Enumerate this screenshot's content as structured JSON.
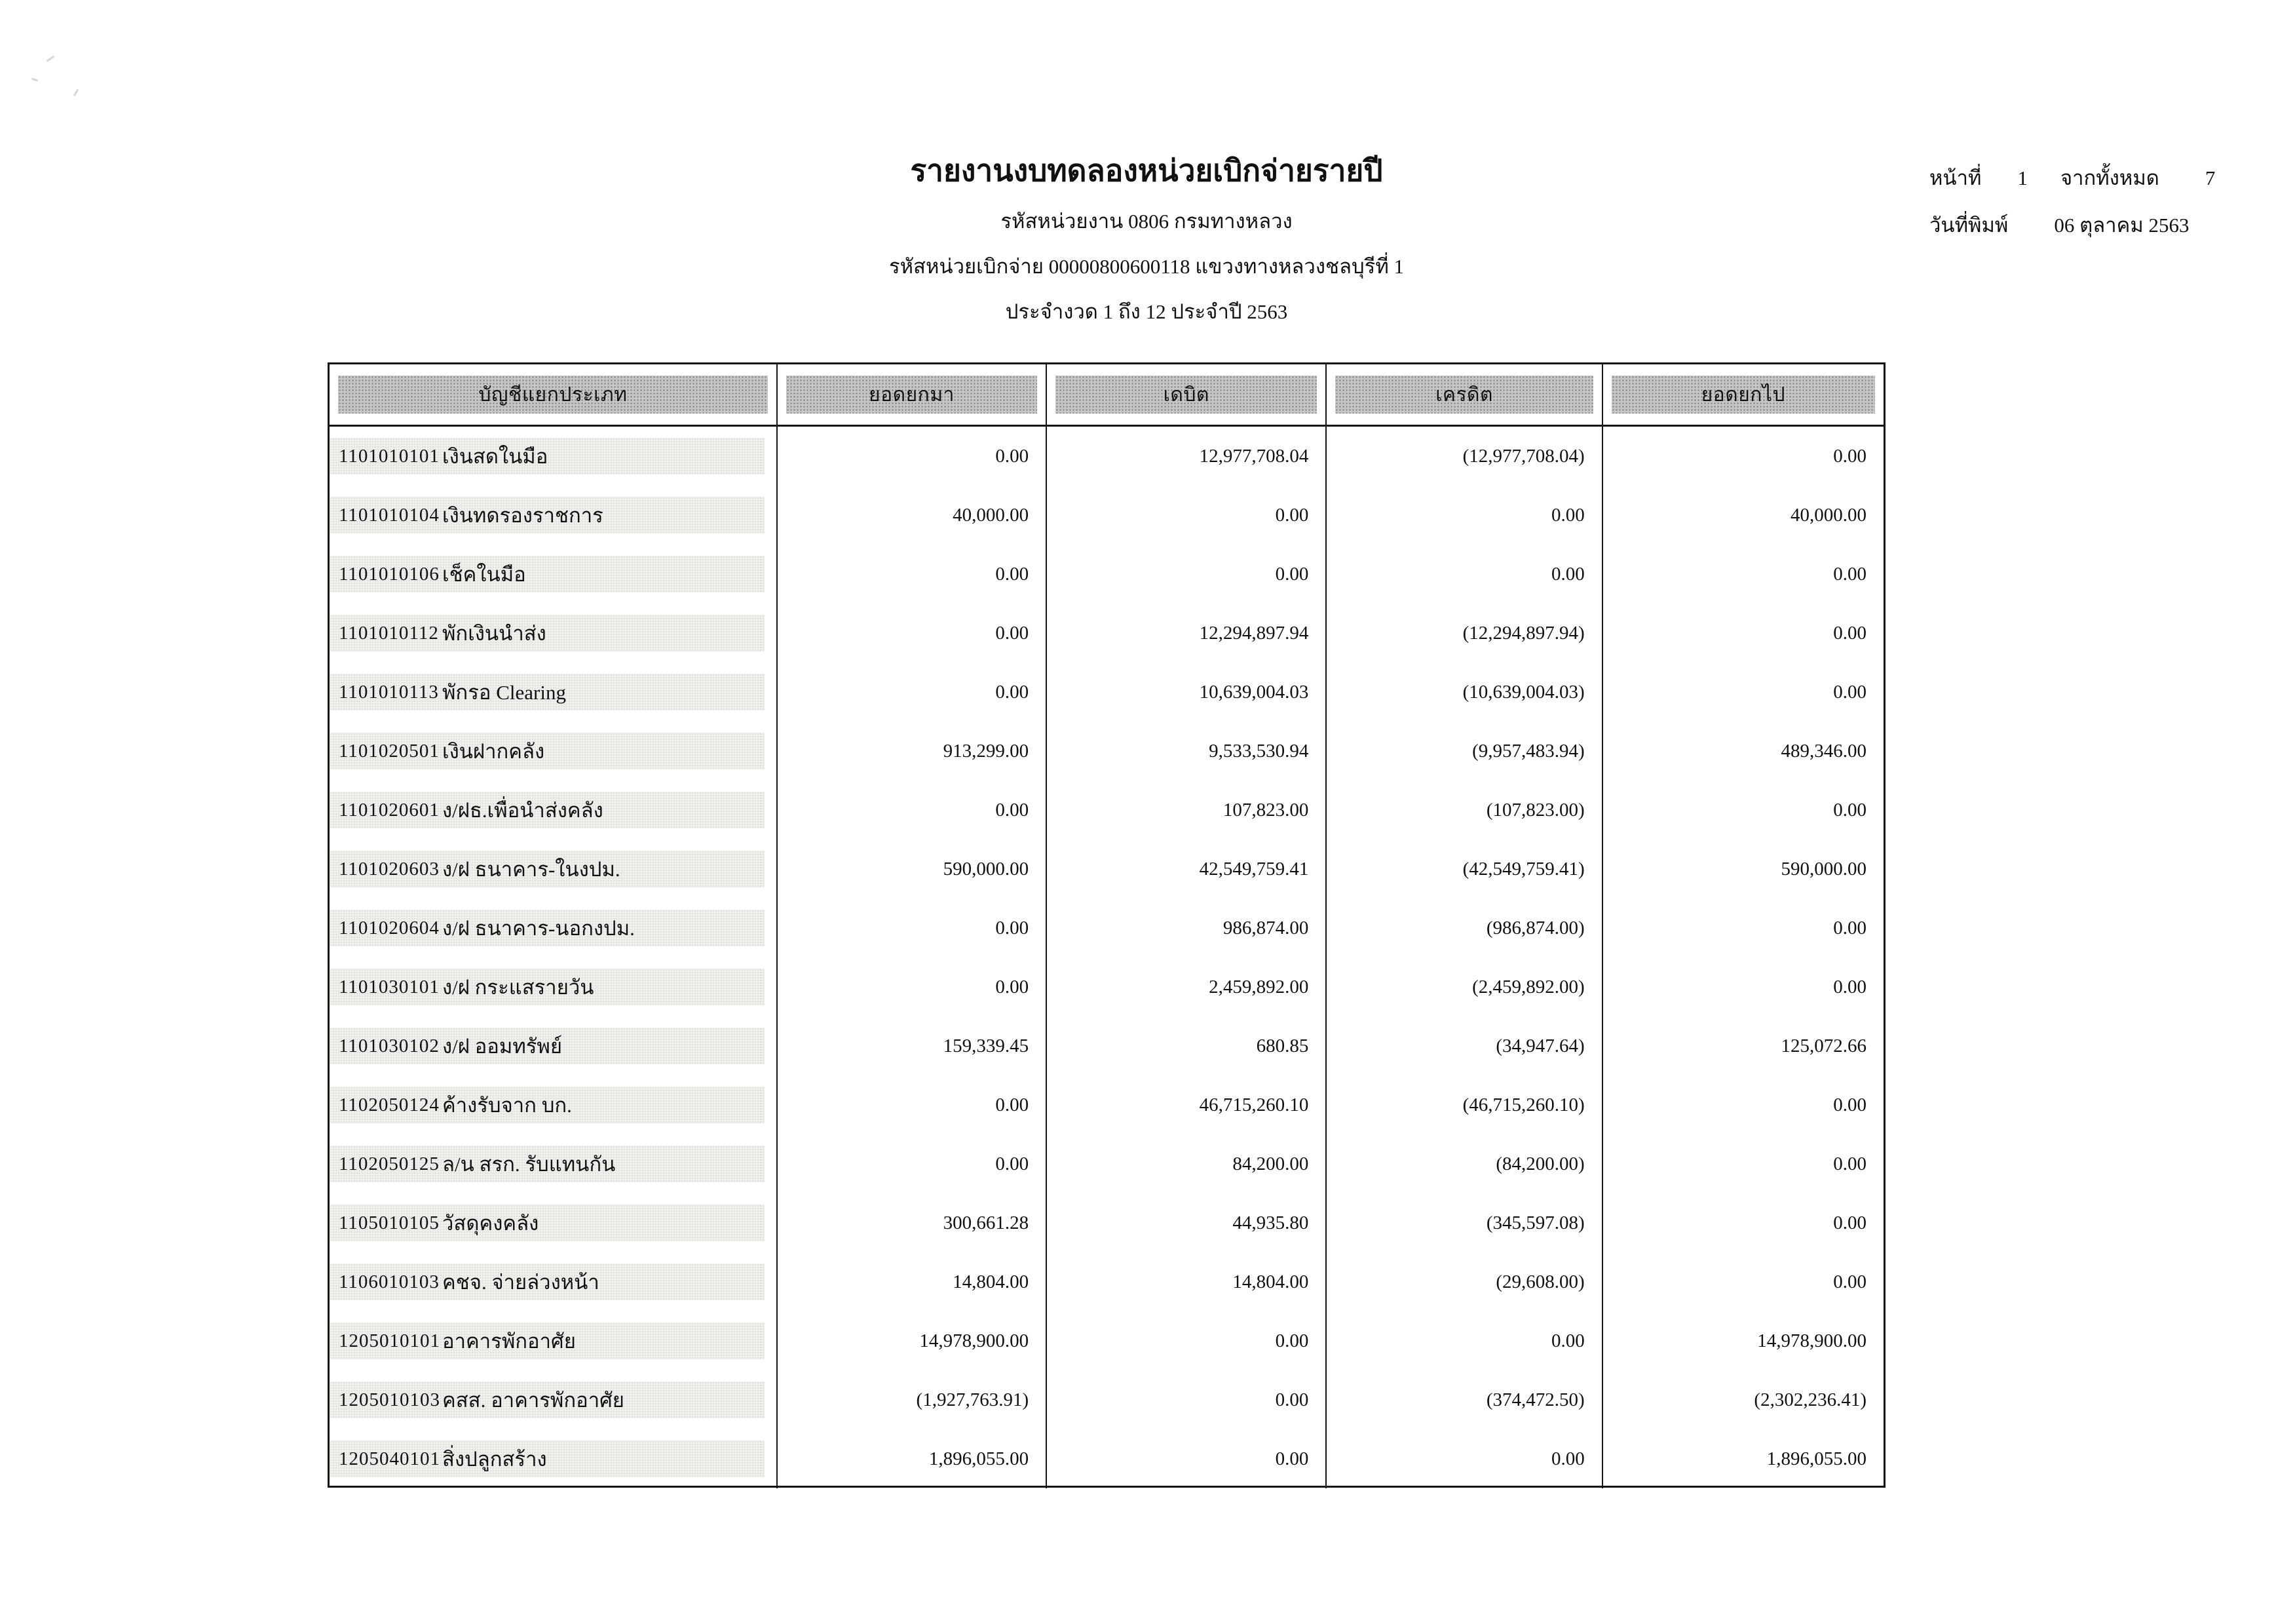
{
  "report": {
    "title": "รายงานงบทดลองหน่วยเบิกจ่ายรายปี",
    "org_line": "รหัสหน่วยงาน 0806 กรมทางหลวง",
    "unit_line": "รหัสหน่วยเบิกจ่าย 00000800600118 แขวงทางหลวงชลบุรีที่ 1",
    "period_line": "ประจำงวด 1 ถึง 12 ประจำปี 2563",
    "page_info": {
      "page_label": "หน้าที่",
      "page_number": "1",
      "of_label": "จากทั้งหมด",
      "total_pages": "7",
      "print_date_label": "วันที่พิมพ์",
      "print_date": "06 ตุลาคม 2563"
    }
  },
  "table": {
    "headers": {
      "account": "บัญชีแยกประเภท",
      "brought_forward": "ยอดยกมา",
      "debit": "เดบิต",
      "credit": "เครดิต",
      "carried_forward": "ยอดยกไป"
    },
    "rows": [
      {
        "code": "1101010101",
        "name": "เงินสดในมือ",
        "brought_forward": "0.00",
        "debit": "12,977,708.04",
        "credit": "(12,977,708.04)",
        "carried_forward": "0.00"
      },
      {
        "code": "1101010104",
        "name": "เงินทดรองราชการ",
        "brought_forward": "40,000.00",
        "debit": "0.00",
        "credit": "0.00",
        "carried_forward": "40,000.00"
      },
      {
        "code": "1101010106",
        "name": "เช็คในมือ",
        "brought_forward": "0.00",
        "debit": "0.00",
        "credit": "0.00",
        "carried_forward": "0.00"
      },
      {
        "code": "1101010112",
        "name": "พักเงินนำส่ง",
        "brought_forward": "0.00",
        "debit": "12,294,897.94",
        "credit": "(12,294,897.94)",
        "carried_forward": "0.00"
      },
      {
        "code": "1101010113",
        "name": "พักรอ Clearing",
        "brought_forward": "0.00",
        "debit": "10,639,004.03",
        "credit": "(10,639,004.03)",
        "carried_forward": "0.00"
      },
      {
        "code": "1101020501",
        "name": "เงินฝากคลัง",
        "brought_forward": "913,299.00",
        "debit": "9,533,530.94",
        "credit": "(9,957,483.94)",
        "carried_forward": "489,346.00"
      },
      {
        "code": "1101020601",
        "name": "ง/ฝธ.เพื่อนำส่งคลัง",
        "brought_forward": "0.00",
        "debit": "107,823.00",
        "credit": "(107,823.00)",
        "carried_forward": "0.00"
      },
      {
        "code": "1101020603",
        "name": "ง/ฝ ธนาคาร-ในงปม.",
        "brought_forward": "590,000.00",
        "debit": "42,549,759.41",
        "credit": "(42,549,759.41)",
        "carried_forward": "590,000.00"
      },
      {
        "code": "1101020604",
        "name": "ง/ฝ ธนาคาร-นอกงปม.",
        "brought_forward": "0.00",
        "debit": "986,874.00",
        "credit": "(986,874.00)",
        "carried_forward": "0.00"
      },
      {
        "code": "1101030101",
        "name": "ง/ฝ กระแสรายวัน",
        "brought_forward": "0.00",
        "debit": "2,459,892.00",
        "credit": "(2,459,892.00)",
        "carried_forward": "0.00"
      },
      {
        "code": "1101030102",
        "name": "ง/ฝ ออมทรัพย์",
        "brought_forward": "159,339.45",
        "debit": "680.85",
        "credit": "(34,947.64)",
        "carried_forward": "125,072.66"
      },
      {
        "code": "1102050124",
        "name": "ค้างรับจาก บก.",
        "brought_forward": "0.00",
        "debit": "46,715,260.10",
        "credit": "(46,715,260.10)",
        "carried_forward": "0.00"
      },
      {
        "code": "1102050125",
        "name": "ล/น สรก. รับแทนกัน",
        "brought_forward": "0.00",
        "debit": "84,200.00",
        "credit": "(84,200.00)",
        "carried_forward": "0.00"
      },
      {
        "code": "1105010105",
        "name": "วัสดุคงคลัง",
        "brought_forward": "300,661.28",
        "debit": "44,935.80",
        "credit": "(345,597.08)",
        "carried_forward": "0.00"
      },
      {
        "code": "1106010103",
        "name": "คชจ. จ่ายล่วงหน้า",
        "brought_forward": "14,804.00",
        "debit": "14,804.00",
        "credit": "(29,608.00)",
        "carried_forward": "0.00"
      },
      {
        "code": "1205010101",
        "name": "อาคารพักอาศัย",
        "brought_forward": "14,978,900.00",
        "debit": "0.00",
        "credit": "0.00",
        "carried_forward": "14,978,900.00"
      },
      {
        "code": "1205010103",
        "name": "คสส. อาคารพักอาศัย",
        "brought_forward": "(1,927,763.91)",
        "debit": "0.00",
        "credit": "(374,472.50)",
        "carried_forward": "(2,302,236.41)"
      },
      {
        "code": "1205040101",
        "name": "สิ่งปลูกสร้าง",
        "brought_forward": "1,896,055.00",
        "debit": "0.00",
        "credit": "0.00",
        "carried_forward": "1,896,055.00"
      }
    ]
  }
}
